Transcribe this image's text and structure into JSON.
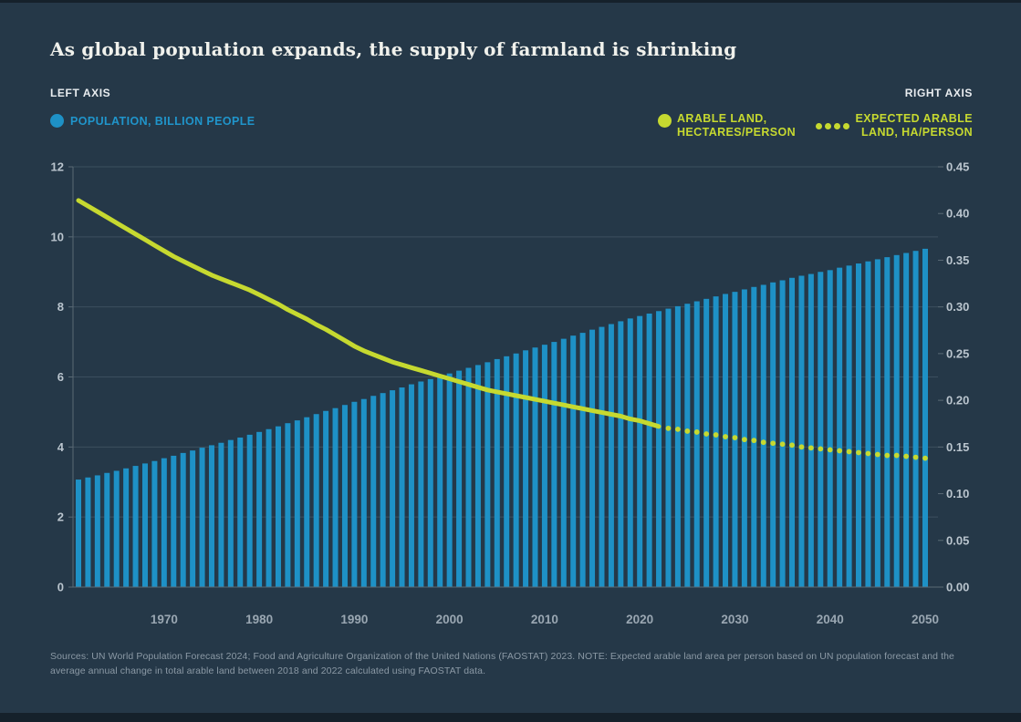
{
  "page": {
    "title": "As global population expands, the supply of farmland is shrinking"
  },
  "header": {
    "left_axis_label": "LEFT AXIS",
    "right_axis_label": "RIGHT AXIS"
  },
  "legend": {
    "population": {
      "label": "POPULATION, BILLION PEOPLE",
      "color": "#1E91C6",
      "marker": "dot"
    },
    "arable": {
      "lines": [
        "ARABLE LAND,",
        "HECTARES/PERSON"
      ],
      "color": "#C6D930",
      "marker": "dot"
    },
    "expected": {
      "lines": [
        "EXPECTED ARABLE",
        "LAND, HA/PERSON"
      ],
      "color": "#C6D930",
      "marker": "dotted-line"
    }
  },
  "footnote": "Sources: UN World Population Forecast 2024; Food and Agriculture Organization of the United Nations (FAOSTAT) 2023. NOTE: Expected arable land area per person based on UN population forecast and the average annual change in total arable land between 2018 and 2022 calculated using FAOSTAT data.",
  "colors": {
    "background": "#253848",
    "bar_blue": "#1E91C6",
    "line_green": "#C6D930",
    "grid": "#3C4F5E",
    "axis": "#5A6A75",
    "tick_label": "#BAC5CE",
    "year_label": "#9AA7B2",
    "title_text": "#F0F1EC",
    "footnote_text": "#8B99A5"
  },
  "chart_data": {
    "type": "combo-bar-line",
    "title": "As global population expands, the supply of farmland is shrinking",
    "x_start_year": 1961,
    "x_end_year": 2050,
    "x_tick_labels": [
      "1970",
      "1980",
      "1990",
      "2000",
      "2010",
      "2020",
      "2030",
      "2040",
      "2050"
    ],
    "grid": "horizontal-only",
    "left_axis": {
      "legend": "POPULATION, BILLION PEOPLE",
      "range": [
        0,
        12
      ],
      "tick_step": 2,
      "tick_labels": [
        "0",
        "2",
        "4",
        "6",
        "8",
        "10",
        "12"
      ]
    },
    "right_axis": {
      "legend_solid": "ARABLE LAND, HECTARES/PERSON",
      "legend_dotted": "EXPECTED ARABLE LAND, HA/PERSON",
      "range": [
        0,
        0.45
      ],
      "tick_step": 0.05,
      "tick_labels": [
        "0.00",
        "0.05",
        "0.10",
        "0.15",
        "0.20",
        "0.25",
        "0.30",
        "0.35",
        "0.40",
        "0.45"
      ]
    },
    "series": [
      {
        "name": "Population, billion people",
        "type": "bar",
        "axis": "left",
        "color": "#1E91C6",
        "start_year": 1961,
        "end_year": 2050,
        "values": [
          3.07,
          3.13,
          3.19,
          3.26,
          3.32,
          3.39,
          3.46,
          3.53,
          3.6,
          3.68,
          3.75,
          3.83,
          3.9,
          3.98,
          4.05,
          4.12,
          4.2,
          4.27,
          4.35,
          4.43,
          4.51,
          4.59,
          4.68,
          4.76,
          4.85,
          4.94,
          5.03,
          5.11,
          5.2,
          5.29,
          5.37,
          5.46,
          5.54,
          5.62,
          5.7,
          5.79,
          5.87,
          5.94,
          6.02,
          6.1,
          6.18,
          6.26,
          6.34,
          6.42,
          6.51,
          6.59,
          6.67,
          6.76,
          6.84,
          6.92,
          7.0,
          7.09,
          7.18,
          7.26,
          7.35,
          7.43,
          7.51,
          7.59,
          7.67,
          7.74,
          7.81,
          7.88,
          7.95,
          8.02,
          8.09,
          8.16,
          8.23,
          8.3,
          8.37,
          8.43,
          8.5,
          8.57,
          8.63,
          8.7,
          8.76,
          8.83,
          8.89,
          8.94,
          9.0,
          9.05,
          9.12,
          9.18,
          9.24,
          9.3,
          9.36,
          9.42,
          9.48,
          9.54,
          9.6,
          9.66
        ]
      },
      {
        "name": "Arable land, hectares/person",
        "type": "line",
        "axis": "right",
        "color": "#C6D930",
        "start_year": 1961,
        "end_year": 2022,
        "values": [
          0.414,
          0.408,
          0.402,
          0.396,
          0.39,
          0.384,
          0.378,
          0.372,
          0.366,
          0.36,
          0.354,
          0.349,
          0.344,
          0.339,
          0.334,
          0.33,
          0.326,
          0.322,
          0.318,
          0.313,
          0.308,
          0.303,
          0.297,
          0.292,
          0.287,
          0.281,
          0.276,
          0.27,
          0.264,
          0.258,
          0.253,
          0.249,
          0.245,
          0.241,
          0.238,
          0.235,
          0.232,
          0.229,
          0.226,
          0.223,
          0.22,
          0.217,
          0.214,
          0.211,
          0.209,
          0.207,
          0.205,
          0.203,
          0.201,
          0.199,
          0.197,
          0.195,
          0.193,
          0.191,
          0.189,
          0.187,
          0.185,
          0.183,
          0.18,
          0.178,
          0.175,
          0.172
        ]
      },
      {
        "name": "Expected arable land, ha/person",
        "type": "dotted-line",
        "axis": "right",
        "color": "#C6D930",
        "start_year": 2023,
        "end_year": 2050,
        "values": [
          0.17,
          0.169,
          0.167,
          0.166,
          0.164,
          0.163,
          0.161,
          0.16,
          0.158,
          0.157,
          0.155,
          0.154,
          0.153,
          0.152,
          0.15,
          0.149,
          0.148,
          0.147,
          0.146,
          0.145,
          0.144,
          0.143,
          0.142,
          0.141,
          0.141,
          0.14,
          0.139,
          0.138
        ]
      }
    ]
  }
}
